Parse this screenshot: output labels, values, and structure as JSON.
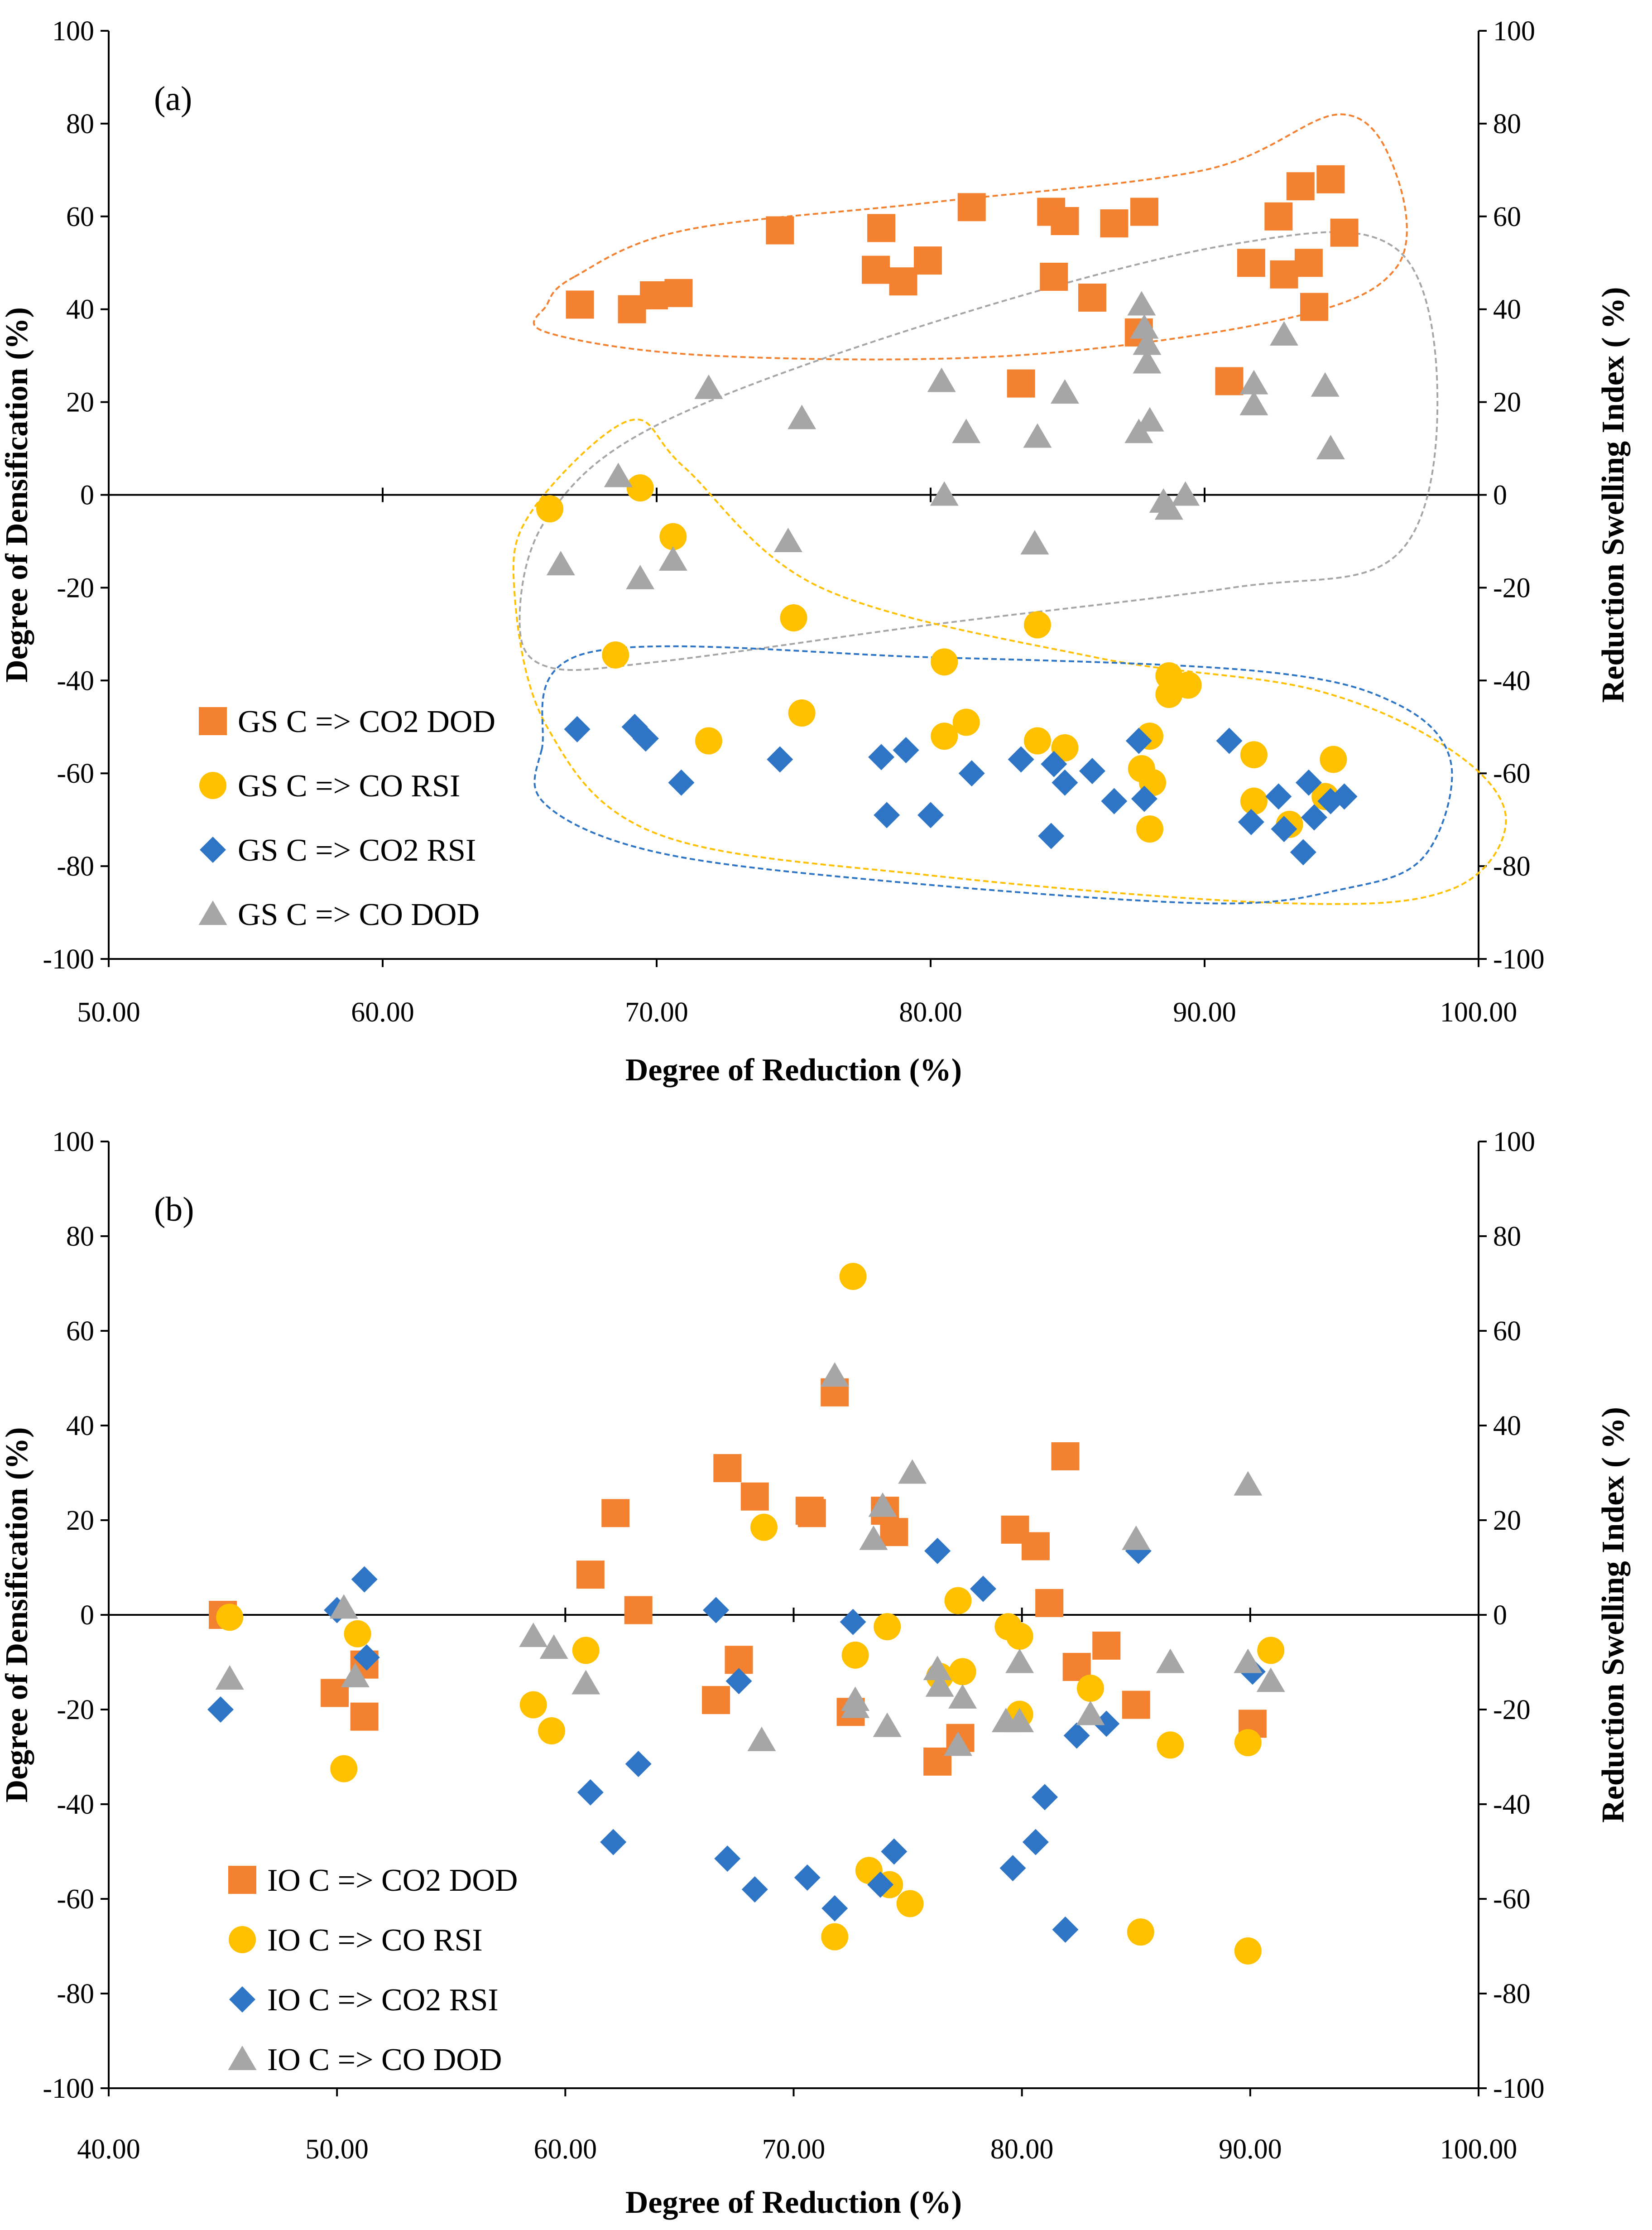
{
  "colors": {
    "orange": "#F4812F",
    "yellow": "#FFC000",
    "blue": "#2E75C6",
    "gray": "#A6A6A6"
  },
  "chart_data": [
    {
      "type": "scatter",
      "panel_label": "(a)",
      "xlabel": "Degree of Reduction (%)",
      "ylabel": "Degree of Densification (%)",
      "y2label": "Reduction Swelling Index ( %)",
      "xlim": [
        50,
        100
      ],
      "ylim": [
        -100,
        100
      ],
      "xticks": [
        "50.00",
        "60.00",
        "70.00",
        "80.00",
        "90.00",
        "100.00"
      ],
      "yticks": [
        "100",
        "80",
        "60",
        "40",
        "20",
        "0",
        "-20",
        "-40",
        "-60",
        "-80",
        "-100"
      ],
      "legend_position": "bottom-left",
      "series": [
        {
          "name": "GS C => CO2 DOD",
          "marker": "square",
          "color": "orange",
          "points": [
            [
              67.2,
              41
            ],
            [
              69.1,
              40
            ],
            [
              69.9,
              43
            ],
            [
              70.8,
              43.5
            ],
            [
              74.5,
              57
            ],
            [
              78.2,
              57.5
            ],
            [
              78.0,
              48.5
            ],
            [
              79.0,
              46
            ],
            [
              79.9,
              50.5
            ],
            [
              81.5,
              62
            ],
            [
              83.3,
              24
            ],
            [
              84.4,
              61
            ],
            [
              84.5,
              47
            ],
            [
              84.9,
              59
            ],
            [
              85.9,
              42.5
            ],
            [
              86.7,
              58.5
            ],
            [
              87.6,
              35
            ],
            [
              87.8,
              61
            ],
            [
              90.9,
              24.5
            ],
            [
              91.7,
              50
            ],
            [
              92.7,
              60
            ],
            [
              92.9,
              47.5
            ],
            [
              93.5,
              66.5
            ],
            [
              93.8,
              50
            ],
            [
              94.0,
              40.5
            ],
            [
              94.6,
              68
            ],
            [
              95.1,
              56.5
            ]
          ]
        },
        {
          "name": "GS C => CO RSI",
          "marker": "circle",
          "color": "yellow",
          "points": [
            [
              66.1,
              -3
            ],
            [
              69.4,
              1.5
            ],
            [
              70.6,
              -9
            ],
            [
              68.5,
              -34.5
            ],
            [
              71.9,
              -53
            ],
            [
              75.0,
              -26.5
            ],
            [
              75.3,
              -47
            ],
            [
              80.5,
              -36
            ],
            [
              80.5,
              -52
            ],
            [
              81.3,
              -49
            ],
            [
              83.9,
              -28
            ],
            [
              83.9,
              -53
            ],
            [
              84.9,
              -54.5
            ],
            [
              87.7,
              -59
            ],
            [
              88.0,
              -52
            ],
            [
              88.1,
              -62
            ],
            [
              88.0,
              -72
            ],
            [
              88.7,
              -39
            ],
            [
              88.7,
              -43
            ],
            [
              89.4,
              -41
            ],
            [
              91.8,
              -56
            ],
            [
              91.8,
              -66
            ],
            [
              93.1,
              -71
            ],
            [
              94.4,
              -65
            ],
            [
              94.7,
              -57
            ]
          ]
        },
        {
          "name": "GS C => CO2 RSI",
          "marker": "diamond",
          "color": "blue",
          "points": [
            [
              67.1,
              -50.5
            ],
            [
              69.2,
              -50
            ],
            [
              69.6,
              -52.5
            ],
            [
              70.9,
              -62
            ],
            [
              74.5,
              -57
            ],
            [
              78.2,
              -56.5
            ],
            [
              78.4,
              -69
            ],
            [
              79.1,
              -55
            ],
            [
              80.0,
              -69
            ],
            [
              81.5,
              -60
            ],
            [
              83.3,
              -57
            ],
            [
              84.4,
              -73.5
            ],
            [
              84.5,
              -58
            ],
            [
              84.9,
              -62
            ],
            [
              85.9,
              -59.5
            ],
            [
              86.7,
              -66
            ],
            [
              87.6,
              -53
            ],
            [
              87.8,
              -65.5
            ],
            [
              90.9,
              -53
            ],
            [
              91.7,
              -70.5
            ],
            [
              92.7,
              -65
            ],
            [
              92.9,
              -72
            ],
            [
              93.6,
              -77
            ],
            [
              93.8,
              -62
            ],
            [
              94.0,
              -69.5
            ],
            [
              94.6,
              -66
            ],
            [
              95.1,
              -65
            ]
          ]
        },
        {
          "name": "GS C => CO DOD",
          "marker": "triangle",
          "color": "gray",
          "points": [
            [
              66.5,
              -15
            ],
            [
              68.6,
              4
            ],
            [
              69.4,
              -18
            ],
            [
              70.6,
              -14
            ],
            [
              71.9,
              23
            ],
            [
              74.8,
              -10
            ],
            [
              75.3,
              16.5
            ],
            [
              80.4,
              24.5
            ],
            [
              80.5,
              0
            ],
            [
              81.3,
              13.5
            ],
            [
              83.8,
              -10.5
            ],
            [
              83.9,
              12.5
            ],
            [
              84.9,
              22
            ],
            [
              87.6,
              13.5
            ],
            [
              87.7,
              41
            ],
            [
              87.8,
              36
            ],
            [
              87.9,
              28.5
            ],
            [
              87.9,
              32.5
            ],
            [
              88.0,
              16
            ],
            [
              88.5,
              -1.5
            ],
            [
              88.7,
              -3
            ],
            [
              89.3,
              0
            ],
            [
              91.8,
              24
            ],
            [
              91.8,
              19.5
            ],
            [
              92.9,
              34.5
            ],
            [
              94.4,
              23.5
            ],
            [
              94.6,
              10
            ]
          ]
        }
      ]
    },
    {
      "type": "scatter",
      "panel_label": "(b)",
      "xlabel": "Degree of Reduction (%)",
      "ylabel": "Degree of Densification (%)",
      "y2label": "Reduction Swelling Index ( %)",
      "xlim": [
        40,
        100
      ],
      "ylim": [
        -100,
        100
      ],
      "xticks": [
        "40.00",
        "50.00",
        "60.00",
        "70.00",
        "80.00",
        "90.00",
        "100.00"
      ],
      "yticks": [
        "100",
        "80",
        "60",
        "40",
        "20",
        "0",
        "-20",
        "-40",
        "-60",
        "-80",
        "-100"
      ],
      "legend_position": "bottom-left",
      "series": [
        {
          "name": "IO C => CO2 DOD",
          "marker": "square",
          "color": "orange",
          "points": [
            [
              45.0,
              0
            ],
            [
              49.9,
              -16.5
            ],
            [
              51.2,
              -10.5
            ],
            [
              51.2,
              -21.5
            ],
            [
              61.1,
              8.5
            ],
            [
              62.2,
              21.5
            ],
            [
              63.2,
              1
            ],
            [
              66.6,
              -18
            ],
            [
              67.1,
              31
            ],
            [
              67.6,
              -9.5
            ],
            [
              68.3,
              25
            ],
            [
              70.7,
              22
            ],
            [
              70.8,
              21.5
            ],
            [
              71.8,
              47
            ],
            [
              72.5,
              -20.5
            ],
            [
              74.0,
              22
            ],
            [
              74.4,
              17.5
            ],
            [
              76.3,
              -31
            ],
            [
              77.3,
              -26
            ],
            [
              79.7,
              18
            ],
            [
              80.6,
              14.5
            ],
            [
              81.2,
              2.5
            ],
            [
              81.9,
              33.5
            ],
            [
              82.4,
              -11
            ],
            [
              83.7,
              -6.5
            ],
            [
              85.0,
              -19
            ],
            [
              90.1,
              -23
            ]
          ]
        },
        {
          "name": "IO C => CO RSI",
          "marker": "circle",
          "color": "yellow",
          "points": [
            [
              45.3,
              -0.5
            ],
            [
              50.3,
              -32.5
            ],
            [
              50.9,
              -4
            ],
            [
              58.6,
              -19
            ],
            [
              59.4,
              -24.5
            ],
            [
              60.9,
              -7.5
            ],
            [
              68.7,
              18.5
            ],
            [
              71.8,
              -68
            ],
            [
              72.6,
              71.5
            ],
            [
              72.7,
              -8.5
            ],
            [
              73.3,
              -54
            ],
            [
              74.1,
              -2.5
            ],
            [
              74.2,
              -57
            ],
            [
              75.1,
              -61
            ],
            [
              76.4,
              -13
            ],
            [
              77.2,
              3
            ],
            [
              77.4,
              -12
            ],
            [
              79.4,
              -2.5
            ],
            [
              79.9,
              -4.5
            ],
            [
              79.9,
              -21
            ],
            [
              83.0,
              -15.5
            ],
            [
              85.2,
              -67
            ],
            [
              86.5,
              -27.5
            ],
            [
              89.9,
              -71
            ],
            [
              89.9,
              -27
            ],
            [
              90.9,
              -7.5
            ]
          ]
        },
        {
          "name": "IO C => CO2 RSI",
          "marker": "diamond",
          "color": "blue",
          "points": [
            [
              44.9,
              -20
            ],
            [
              50.0,
              1
            ],
            [
              51.2,
              7.5
            ],
            [
              51.3,
              -9
            ],
            [
              61.1,
              -37.5
            ],
            [
              62.1,
              -48
            ],
            [
              63.2,
              -31.5
            ],
            [
              66.6,
              1
            ],
            [
              67.1,
              -51.5
            ],
            [
              67.6,
              -14
            ],
            [
              68.3,
              -58
            ],
            [
              70.6,
              -55.5
            ],
            [
              71.8,
              -62
            ],
            [
              72.6,
              -1.5
            ],
            [
              73.8,
              -57
            ],
            [
              74.4,
              -50
            ],
            [
              76.3,
              13.5
            ],
            [
              78.3,
              5.5
            ],
            [
              79.6,
              -53.5
            ],
            [
              80.6,
              -48
            ],
            [
              81.0,
              -38.5
            ],
            [
              81.9,
              -66.5
            ],
            [
              82.4,
              -25.5
            ],
            [
              83.7,
              -23
            ],
            [
              85.1,
              13.5
            ],
            [
              90.1,
              -12
            ]
          ]
        },
        {
          "name": "IO C => CO DOD",
          "marker": "triangle",
          "color": "gray",
          "points": [
            [
              45.3,
              -13.5
            ],
            [
              50.3,
              1.5
            ],
            [
              50.8,
              -13
            ],
            [
              58.6,
              -4.5
            ],
            [
              59.5,
              -7
            ],
            [
              60.9,
              -14.5
            ],
            [
              68.6,
              -26.5
            ],
            [
              71.8,
              50.5
            ],
            [
              72.7,
              -19.5
            ],
            [
              72.7,
              -18
            ],
            [
              73.5,
              16
            ],
            [
              73.9,
              23
            ],
            [
              74.1,
              -23.5
            ],
            [
              75.2,
              30
            ],
            [
              76.3,
              -11.5
            ],
            [
              76.4,
              -15
            ],
            [
              77.2,
              -27.5
            ],
            [
              77.4,
              -17.5
            ],
            [
              79.3,
              -22.5
            ],
            [
              79.9,
              -22.5
            ],
            [
              79.9,
              -10
            ],
            [
              83.0,
              -21
            ],
            [
              85.0,
              16
            ],
            [
              86.5,
              -10
            ],
            [
              89.9,
              27.5
            ],
            [
              89.9,
              -10
            ],
            [
              90.9,
              -14
            ]
          ]
        }
      ]
    }
  ]
}
